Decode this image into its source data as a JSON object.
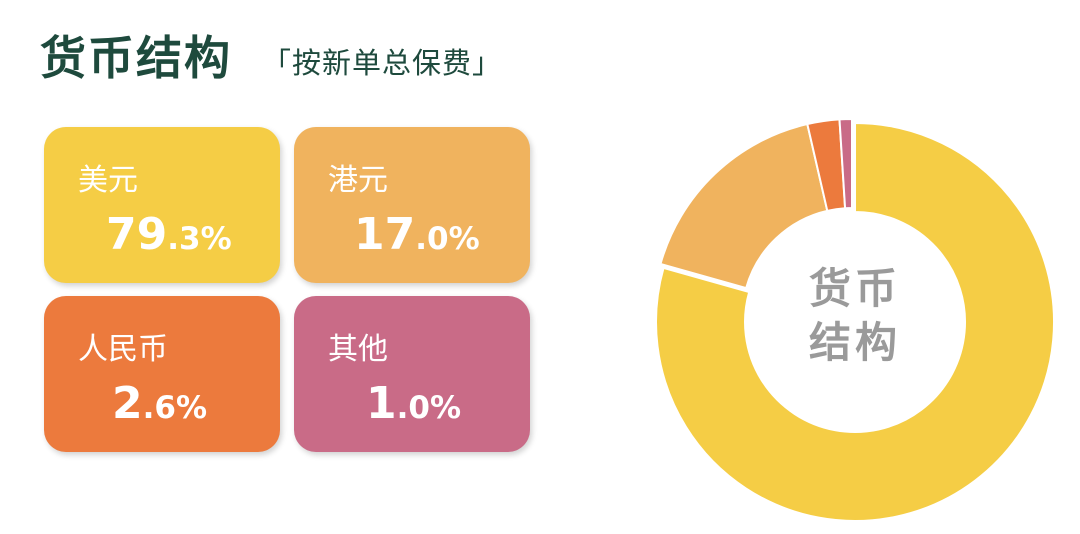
{
  "header": {
    "title": "货币结构",
    "subtitle": "「按新单总保费」"
  },
  "cards": [
    {
      "label": "美元",
      "value": "79.3%",
      "color": "#f5cd45"
    },
    {
      "label": "港元",
      "value": "17.0%",
      "color": "#f0b35e"
    },
    {
      "label": "人民币",
      "value": "2.6%",
      "color": "#ec7a3d"
    },
    {
      "label": "其他",
      "value": "1.0%",
      "color": "#c96b87"
    }
  ],
  "chart_data": {
    "type": "pie",
    "donut": true,
    "center_label": "货币结构",
    "categories": [
      "美元",
      "港元",
      "人民币",
      "其他"
    ],
    "values": [
      79.3,
      17.0,
      2.6,
      1.0
    ],
    "colors": [
      "#f5cd45",
      "#f0b35e",
      "#ec7a3d",
      "#c96b87"
    ],
    "start": "top",
    "direction": "clockwise",
    "legend": "left"
  }
}
